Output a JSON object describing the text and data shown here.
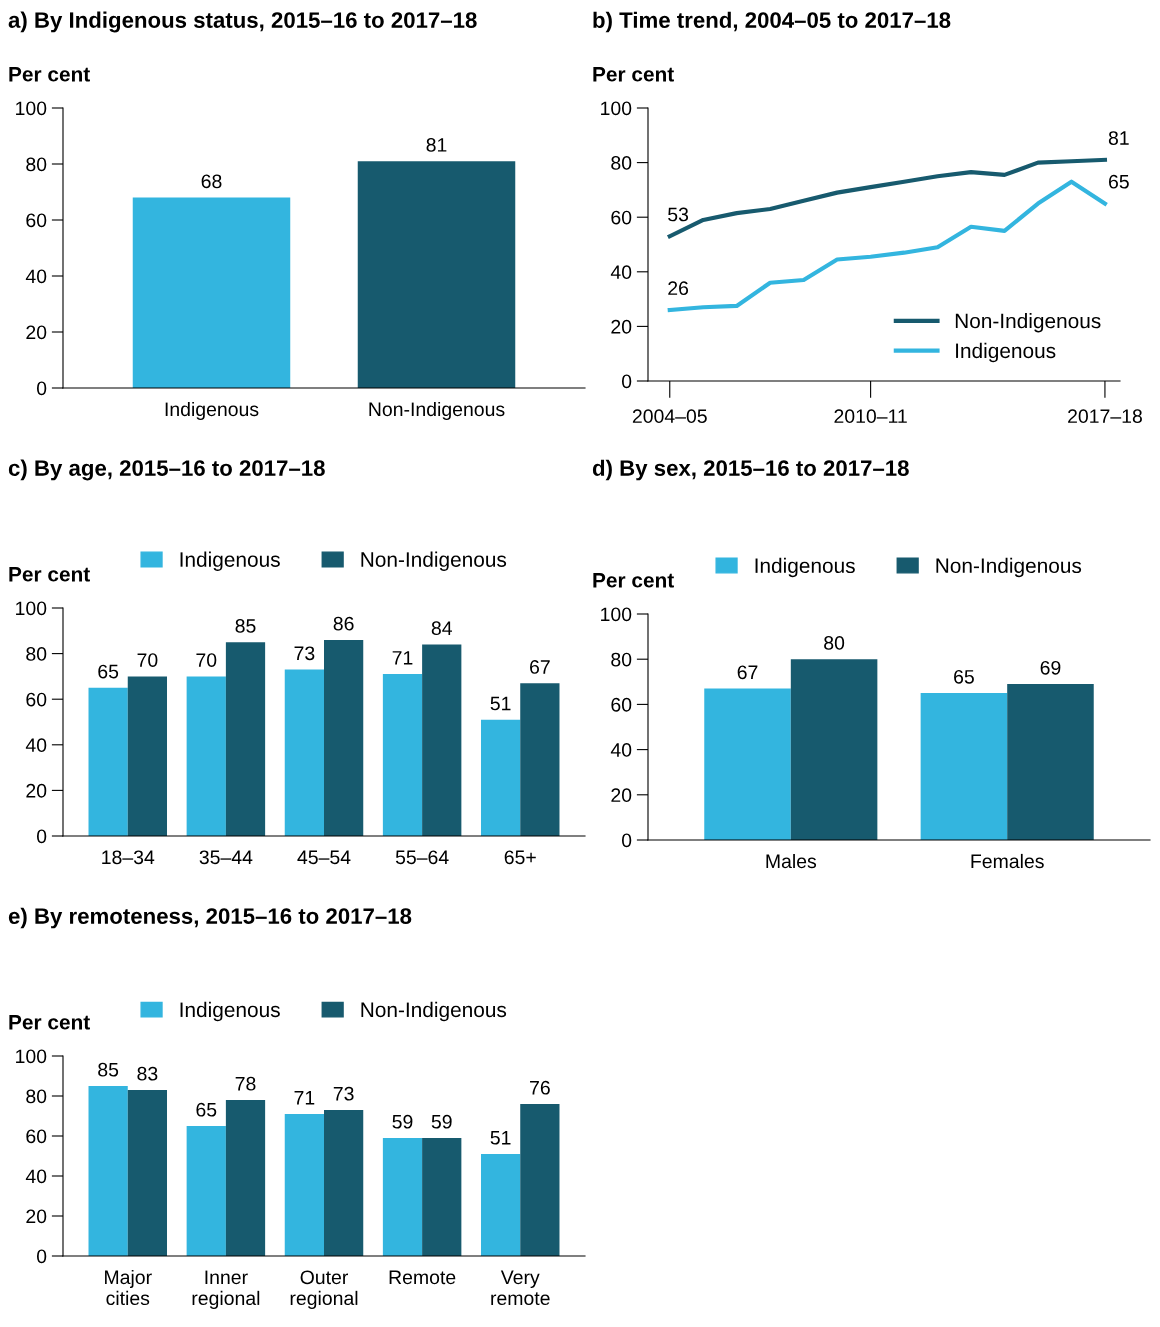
{
  "chart_data": [
    {
      "type": "bar",
      "title": "a) By Indigenous status, 2015–16 to 2017–18",
      "ylabel": "Per cent",
      "categories": [
        "Indigenous",
        "Non-Indigenous"
      ],
      "values": [
        68,
        81
      ],
      "colors": [
        "#33b5df",
        "#175a6e"
      ],
      "ylim": [
        0,
        100
      ],
      "yticks": [
        0,
        20,
        40,
        60,
        80,
        100
      ],
      "data_labels": true,
      "grid": false,
      "legend": false
    },
    {
      "type": "line",
      "title": "b) Time trend, 2004–05 to 2017–18",
      "ylabel": "Per cent",
      "categories": [
        "2004–05",
        null,
        null,
        null,
        null,
        null,
        "2010–11",
        null,
        null,
        null,
        null,
        null,
        null,
        "2017–18"
      ],
      "ylim": [
        0,
        100
      ],
      "yticks": [
        0,
        20,
        40,
        60,
        80,
        100
      ],
      "grid": false,
      "legend": "bottom right",
      "marker": "none",
      "line_style": "solid",
      "series": [
        {
          "name": "Non-Indigenous",
          "color": "#175a6e",
          "values": [
            53,
            59,
            61.5,
            63,
            66,
            69,
            71,
            73,
            75,
            76.5,
            75.5,
            80,
            80.5,
            81
          ],
          "value_labels": [
            "53",
            null,
            null,
            null,
            null,
            null,
            null,
            null,
            null,
            null,
            null,
            null,
            null,
            "81"
          ]
        },
        {
          "name": "Indigenous",
          "color": "#33b5df",
          "values": [
            26,
            27,
            27.5,
            36,
            37,
            44.5,
            45.5,
            47,
            49,
            56.5,
            55,
            65,
            73,
            65
          ],
          "value_labels": [
            "26",
            null,
            null,
            null,
            null,
            null,
            null,
            null,
            null,
            null,
            null,
            null,
            null,
            "65"
          ]
        }
      ]
    },
    {
      "type": "bar",
      "title": "c) By age, 2015–16 to 2017–18",
      "ylabel": "Per cent",
      "categories": [
        "18–34",
        "35–44",
        "45–54",
        "55–64",
        "65+"
      ],
      "ylim": [
        0,
        100
      ],
      "yticks": [
        0,
        20,
        40,
        60,
        80,
        100
      ],
      "data_labels": true,
      "grid": false,
      "legend": "top",
      "series": [
        {
          "name": "Indigenous",
          "color": "#33b5df",
          "values": [
            65,
            70,
            73,
            71,
            51
          ]
        },
        {
          "name": "Non-Indigenous",
          "color": "#175a6e",
          "values": [
            70,
            85,
            86,
            84,
            67
          ]
        }
      ]
    },
    {
      "type": "bar",
      "title": "d) By sex, 2015–16 to 2017–18",
      "ylabel": "Per cent",
      "categories": [
        "Males",
        "Females"
      ],
      "ylim": [
        0,
        100
      ],
      "yticks": [
        0,
        20,
        40,
        60,
        80,
        100
      ],
      "data_labels": true,
      "grid": false,
      "legend": "top",
      "series": [
        {
          "name": "Indigenous",
          "color": "#33b5df",
          "values": [
            67,
            65
          ]
        },
        {
          "name": "Non-Indigenous",
          "color": "#175a6e",
          "values": [
            80,
            69
          ]
        }
      ]
    },
    {
      "type": "bar",
      "title": "e) By remoteness, 2015–16 to 2017–18",
      "ylabel": "Per cent",
      "categories": [
        "Major\ncities",
        "Inner\nregional",
        "Outer\nregional",
        "Remote",
        "Very\nremote"
      ],
      "ylim": [
        0,
        100
      ],
      "yticks": [
        0,
        20,
        40,
        60,
        80,
        100
      ],
      "data_labels": true,
      "grid": false,
      "legend": "top",
      "series": [
        {
          "name": "Indigenous",
          "color": "#33b5df",
          "values": [
            85,
            65,
            71,
            59,
            51
          ]
        },
        {
          "name": "Non-Indigenous",
          "color": "#175a6e",
          "values": [
            83,
            78,
            73,
            59,
            76
          ]
        }
      ]
    }
  ]
}
